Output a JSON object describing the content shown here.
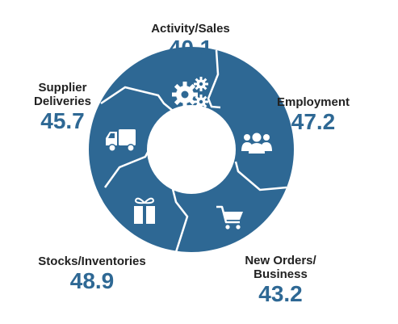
{
  "colors": {
    "ring": "#2e6894",
    "divider": "#ffffff",
    "value": "#2e6894",
    "label": "#222222"
  },
  "segments": [
    {
      "label": "Activity/Sales",
      "value": "40.1",
      "icon": "gears-icon"
    },
    {
      "label": "Employment",
      "value": "47.2",
      "icon": "people-icon"
    },
    {
      "label": "New Orders/\nBusiness",
      "value": "43.2",
      "icon": "shopping-cart-icon"
    },
    {
      "label": "Stocks/Inventories",
      "value": "48.9",
      "icon": "gift-icon"
    },
    {
      "label": "Supplier\nDeliveries",
      "value": "45.7",
      "icon": "delivery-truck-icon"
    }
  ]
}
